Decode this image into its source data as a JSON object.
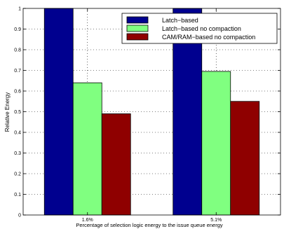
{
  "chart_data": {
    "type": "bar",
    "xlabel": "Percentage of selection logic energy to the issue queue energy",
    "ylabel": "Relative Energy",
    "categories": [
      "1.6%",
      "5.1%"
    ],
    "ylim": [
      0,
      1
    ],
    "yticks": [
      "0",
      "0.1",
      "0.2",
      "0.3",
      "0.4",
      "0.5",
      "0.6",
      "0.7",
      "0.8",
      "0.9",
      "1"
    ],
    "grid": true,
    "legend_position": "top-right",
    "series": [
      {
        "name": "Latch−based",
        "color": "#00008f",
        "values": [
          1.0,
          1.0
        ]
      },
      {
        "name": "Latch−based no compaction",
        "color": "#80ff80",
        "values": [
          0.64,
          0.695
        ]
      },
      {
        "name": "CAM/RAM−based no compaction",
        "color": "#8f0000",
        "values": [
          0.49,
          0.55
        ]
      }
    ]
  }
}
